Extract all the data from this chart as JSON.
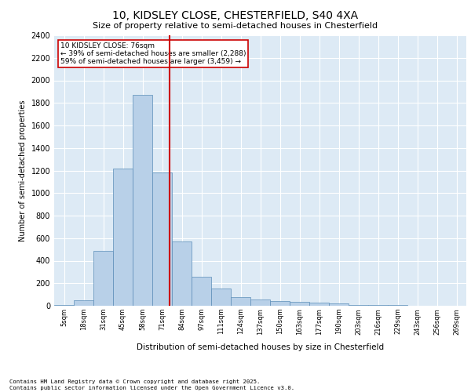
{
  "title1": "10, KIDSLEY CLOSE, CHESTERFIELD, S40 4XA",
  "title2": "Size of property relative to semi-detached houses in Chesterfield",
  "xlabel": "Distribution of semi-detached houses by size in Chesterfield",
  "ylabel": "Number of semi-detached properties",
  "categories": [
    "5sqm",
    "18sqm",
    "31sqm",
    "45sqm",
    "58sqm",
    "71sqm",
    "84sqm",
    "97sqm",
    "111sqm",
    "124sqm",
    "137sqm",
    "150sqm",
    "163sqm",
    "177sqm",
    "190sqm",
    "203sqm",
    "216sqm",
    "229sqm",
    "243sqm",
    "256sqm",
    "269sqm"
  ],
  "values": [
    5,
    50,
    490,
    1220,
    1870,
    1180,
    570,
    260,
    150,
    80,
    55,
    45,
    35,
    25,
    18,
    10,
    6,
    4,
    2,
    1,
    1
  ],
  "bar_color": "#b8d0e8",
  "bar_edge_color": "#5b8db8",
  "vline_x_index": 5.38,
  "vline_color": "#cc0000",
  "annotation_title": "10 KIDSLEY CLOSE: 76sqm",
  "annotation_line1": "← 39% of semi-detached houses are smaller (2,288)",
  "annotation_line2": "59% of semi-detached houses are larger (3,459) →",
  "annotation_box_color": "#cc0000",
  "ylim": [
    0,
    2400
  ],
  "yticks": [
    0,
    200,
    400,
    600,
    800,
    1000,
    1200,
    1400,
    1600,
    1800,
    2000,
    2200,
    2400
  ],
  "bg_color": "#ddeaf5",
  "grid_color": "#ffffff",
  "footer1": "Contains HM Land Registry data © Crown copyright and database right 2025.",
  "footer2": "Contains public sector information licensed under the Open Government Licence v3.0."
}
